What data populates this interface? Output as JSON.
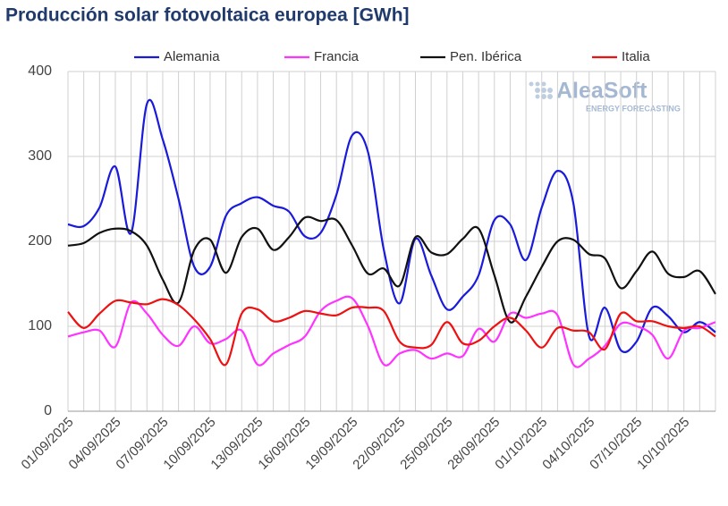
{
  "chart_data": {
    "type": "line",
    "title": "Producción solar fotovoltaica europea [GWh]",
    "watermark": {
      "brand": "AleaSoft",
      "tagline": "ENERGY FORECASTING"
    },
    "categories": [
      "01/09/2025",
      null,
      null,
      "04/09/2025",
      null,
      null,
      "07/09/2025",
      null,
      null,
      "10/09/2025",
      null,
      null,
      "13/09/2025",
      null,
      null,
      "16/09/2025",
      null,
      null,
      "19/09/2025",
      null,
      null,
      "22/09/2025",
      null,
      null,
      "25/09/2025",
      null,
      null,
      "28/09/2025",
      null,
      null,
      "01/10/2025",
      null,
      null,
      "04/10/2025",
      null,
      null,
      "07/10/2025",
      null,
      null,
      "10/10/2025",
      null,
      null
    ],
    "ylim": [
      0,
      400
    ],
    "yticks": [
      0,
      100,
      200,
      300,
      400
    ],
    "grid": true,
    "legend": "top",
    "series": [
      {
        "name": "Alemania",
        "color": "#1a1adb",
        "values": [
          220,
          218,
          240,
          288,
          210,
          362,
          320,
          250,
          170,
          170,
          230,
          245,
          252,
          242,
          235,
          206,
          210,
          255,
          325,
          305,
          190,
          127,
          203,
          160,
          120,
          135,
          160,
          225,
          220,
          178,
          240,
          283,
          245,
          88,
          122,
          72,
          82,
          122,
          112,
          93,
          105,
          93
        ]
      },
      {
        "name": "Francia",
        "color": "#ff33ff",
        "values": [
          88,
          93,
          95,
          76,
          128,
          115,
          90,
          77,
          100,
          80,
          85,
          95,
          55,
          68,
          78,
          88,
          118,
          130,
          133,
          100,
          55,
          68,
          72,
          62,
          68,
          65,
          97,
          82,
          115,
          110,
          115,
          113,
          55,
          62,
          77,
          103,
          100,
          90,
          62,
          95,
          98,
          105
        ]
      },
      {
        "name": "Pen. Ibérica",
        "color": "#111111",
        "values": [
          195,
          198,
          210,
          215,
          212,
          195,
          155,
          128,
          190,
          202,
          163,
          205,
          215,
          190,
          205,
          228,
          224,
          225,
          195,
          162,
          168,
          148,
          205,
          187,
          185,
          203,
          215,
          160,
          105,
          135,
          170,
          200,
          202,
          185,
          180,
          145,
          165,
          188,
          162,
          158,
          165,
          138
        ]
      },
      {
        "name": "Italia",
        "color": "#ee1111",
        "values": [
          117,
          98,
          115,
          130,
          128,
          126,
          132,
          125,
          108,
          85,
          55,
          115,
          120,
          106,
          110,
          118,
          115,
          113,
          122,
          122,
          118,
          82,
          75,
          78,
          105,
          80,
          83,
          100,
          110,
          95,
          75,
          98,
          95,
          93,
          73,
          115,
          106,
          106,
          100,
          98,
          100,
          88
        ]
      }
    ]
  }
}
